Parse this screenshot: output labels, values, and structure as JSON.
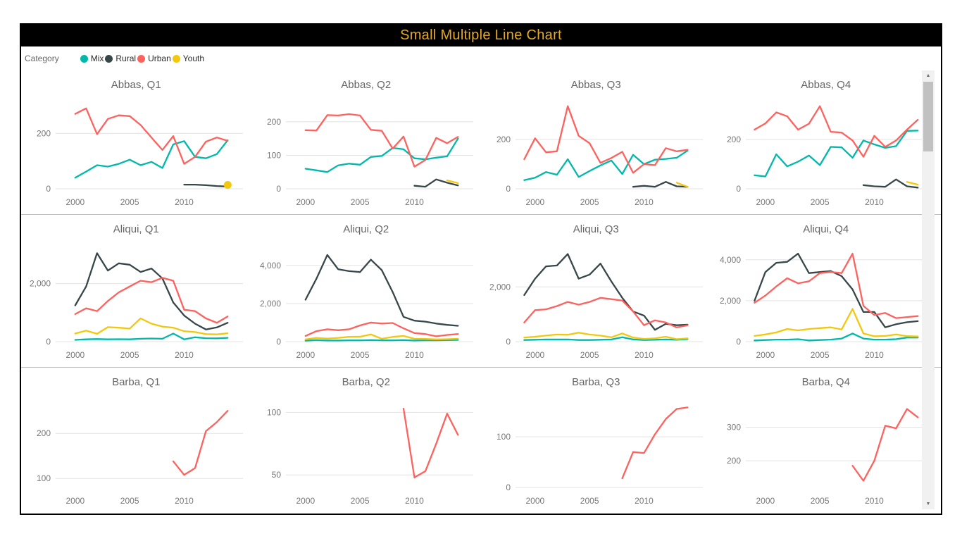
{
  "header": {
    "title": "Small Multiple Line Chart",
    "title_color": "#E6AA1E",
    "bar_color": "#000000"
  },
  "legend": {
    "label": "Category",
    "items": [
      {
        "name": "Mix",
        "color": "#01B8AA"
      },
      {
        "name": "Rural",
        "color": "#374649"
      },
      {
        "name": "Urban",
        "color": "#FD625E"
      },
      {
        "name": "Youth",
        "color": "#F2C80F"
      }
    ]
  },
  "axis_style": {
    "tick_color": "#777777",
    "gridline_color": "#e3e3e3",
    "title_color": "#666666"
  },
  "chart_data": [
    {
      "type": "line",
      "title": "Abbas, Q1",
      "xlim": [
        1998.2,
        2015.4
      ],
      "x_ticks": [
        2000,
        2005,
        2010
      ],
      "ylim": [
        0,
        320
      ],
      "y_ticks": [
        0,
        200
      ],
      "series": [
        {
          "name": "Mix",
          "start": 2000,
          "values": [
            40,
            62,
            85,
            80,
            90,
            105,
            85,
            97,
            75,
            160,
            172,
            115,
            110,
            125,
            175
          ]
        },
        {
          "name": "Rural",
          "start": 2010,
          "values": [
            15,
            15,
            13,
            10,
            8
          ]
        },
        {
          "name": "Urban",
          "start": 2000,
          "values": [
            270,
            290,
            197,
            252,
            265,
            262,
            230,
            185,
            140,
            190,
            90,
            115,
            170,
            185,
            173
          ]
        },
        {
          "name": "Youth",
          "start": 2014,
          "values": [
            14
          ]
        }
      ]
    },
    {
      "type": "line",
      "title": "Abbas, Q2",
      "xlim": [
        1998.2,
        2015.4
      ],
      "x_ticks": [
        2000,
        2005,
        2010
      ],
      "ylim": [
        0,
        265
      ],
      "y_ticks": [
        0,
        100,
        200
      ],
      "series": [
        {
          "name": "Mix",
          "start": 2000,
          "values": [
            60,
            55,
            50,
            70,
            75,
            72,
            95,
            98,
            122,
            118,
            91,
            88,
            93,
            97,
            150
          ]
        },
        {
          "name": "Rural",
          "start": 2010,
          "values": [
            9,
            6,
            28,
            18,
            10
          ]
        },
        {
          "name": "Urban",
          "start": 2000,
          "values": [
            175,
            174,
            220,
            219,
            223,
            219,
            176,
            173,
            120,
            156,
            66,
            86,
            152,
            136,
            155
          ]
        },
        {
          "name": "Youth",
          "start": 2013,
          "values": [
            25,
            17
          ]
        }
      ]
    },
    {
      "type": "line",
      "title": "Abbas, Q3",
      "xlim": [
        1998.2,
        2015.4
      ],
      "x_ticks": [
        2000,
        2005,
        2010
      ],
      "ylim": [
        0,
        360
      ],
      "y_ticks": [
        0,
        200
      ],
      "series": [
        {
          "name": "Mix",
          "start": 1999,
          "values": [
            35,
            45,
            68,
            57,
            120,
            48,
            72,
            95,
            115,
            60,
            138,
            100,
            118,
            121,
            126,
            155
          ]
        },
        {
          "name": "Rural",
          "start": 2009,
          "values": [
            8,
            12,
            8,
            28,
            10,
            8
          ]
        },
        {
          "name": "Urban",
          "start": 1999,
          "values": [
            120,
            205,
            148,
            152,
            335,
            215,
            185,
            105,
            125,
            150,
            65,
            100,
            96,
            165,
            152,
            158
          ]
        },
        {
          "name": "Youth",
          "start": 2013,
          "values": [
            25,
            8
          ]
        }
      ]
    },
    {
      "type": "line",
      "title": "Abbas, Q4",
      "xlim": [
        1998.2,
        2015.4
      ],
      "x_ticks": [
        2000,
        2005,
        2010
      ],
      "ylim": [
        0,
        360
      ],
      "y_ticks": [
        0,
        200
      ],
      "series": [
        {
          "name": "Mix",
          "start": 1999,
          "values": [
            55,
            50,
            140,
            91,
            110,
            135,
            96,
            170,
            168,
            126,
            196,
            180,
            166,
            173,
            235,
            236
          ]
        },
        {
          "name": "Rural",
          "start": 2009,
          "values": [
            15,
            10,
            8,
            38,
            10,
            5
          ]
        },
        {
          "name": "Urban",
          "start": 1999,
          "values": [
            240,
            265,
            310,
            294,
            240,
            264,
            335,
            231,
            228,
            196,
            130,
            215,
            170,
            196,
            240,
            280
          ]
        },
        {
          "name": "Youth",
          "start": 2013,
          "values": [
            28,
            17
          ]
        }
      ]
    },
    {
      "type": "line",
      "title": "Aliqui, Q1",
      "xlim": [
        1998.2,
        2015.4
      ],
      "x_ticks": [
        2000,
        2005,
        2010
      ],
      "ylim": [
        0,
        3350
      ],
      "y_ticks": [
        0,
        2000
      ],
      "series": [
        {
          "name": "Mix",
          "start": 2000,
          "values": [
            60,
            80,
            90,
            80,
            85,
            80,
            100,
            110,
            100,
            280,
            80,
            150,
            120,
            115,
            130
          ]
        },
        {
          "name": "Rural",
          "start": 2000,
          "values": [
            1250,
            1900,
            3050,
            2450,
            2700,
            2650,
            2400,
            2520,
            2180,
            1350,
            900,
            620,
            420,
            490,
            650
          ]
        },
        {
          "name": "Urban",
          "start": 2000,
          "values": [
            950,
            1150,
            1050,
            1400,
            1700,
            1900,
            2100,
            2050,
            2200,
            2100,
            1100,
            1050,
            800,
            650,
            870
          ]
        },
        {
          "name": "Youth",
          "start": 2000,
          "values": [
            280,
            380,
            270,
            500,
            480,
            450,
            800,
            620,
            520,
            480,
            360,
            330,
            260,
            250,
            290
          ]
        }
      ]
    },
    {
      "type": "line",
      "title": "Aliqui, Q2",
      "xlim": [
        1998.2,
        2015.4
      ],
      "x_ticks": [
        2000,
        2005,
        2010
      ],
      "ylim": [
        0,
        5100
      ],
      "y_ticks": [
        0,
        2000,
        4000
      ],
      "series": [
        {
          "name": "Mix",
          "start": 2000,
          "values": [
            50,
            80,
            60,
            60,
            70,
            70,
            80,
            70,
            70,
            80,
            60,
            70,
            70,
            80,
            90
          ]
        },
        {
          "name": "Rural",
          "start": 2000,
          "values": [
            2200,
            3300,
            4550,
            3800,
            3700,
            3650,
            4300,
            3750,
            2600,
            1300,
            1100,
            1050,
            950,
            880,
            830
          ]
        },
        {
          "name": "Urban",
          "start": 2000,
          "values": [
            300,
            550,
            650,
            600,
            650,
            850,
            1000,
            950,
            980,
            700,
            450,
            400,
            280,
            350,
            400
          ]
        },
        {
          "name": "Youth",
          "start": 2000,
          "values": [
            120,
            200,
            160,
            200,
            250,
            260,
            380,
            150,
            250,
            300,
            150,
            140,
            120,
            130,
            150
          ]
        }
      ]
    },
    {
      "type": "line",
      "title": "Aliqui, Q3",
      "xlim": [
        1998.2,
        2015.4
      ],
      "x_ticks": [
        2000,
        2005,
        2010
      ],
      "ylim": [
        0,
        3550
      ],
      "y_ticks": [
        0,
        2000
      ],
      "series": [
        {
          "name": "Mix",
          "start": 1999,
          "values": [
            60,
            70,
            80,
            80,
            80,
            60,
            60,
            70,
            80,
            160,
            80,
            60,
            70,
            80,
            70,
            90
          ]
        },
        {
          "name": "Rural",
          "start": 1999,
          "values": [
            1700,
            2300,
            2750,
            2780,
            3200,
            2300,
            2450,
            2850,
            2200,
            1600,
            1100,
            950,
            430,
            650,
            600,
            620
          ]
        },
        {
          "name": "Urban",
          "start": 1999,
          "values": [
            700,
            1150,
            1180,
            1300,
            1450,
            1350,
            1450,
            1600,
            1550,
            1500,
            1100,
            600,
            780,
            700,
            520,
            600
          ]
        },
        {
          "name": "Youth",
          "start": 1999,
          "values": [
            150,
            180,
            220,
            260,
            250,
            330,
            260,
            220,
            160,
            300,
            150,
            100,
            120,
            180,
            90,
            120
          ]
        }
      ]
    },
    {
      "type": "line",
      "title": "Aliqui, Q4",
      "xlim": [
        1998.2,
        2015.4
      ],
      "x_ticks": [
        2000,
        2005,
        2010
      ],
      "ylim": [
        0,
        4750
      ],
      "y_ticks": [
        0,
        2000,
        4000
      ],
      "series": [
        {
          "name": "Mix",
          "start": 1999,
          "values": [
            60,
            80,
            100,
            100,
            120,
            60,
            80,
            100,
            150,
            400,
            150,
            100,
            100,
            120,
            200,
            200
          ]
        },
        {
          "name": "Rural",
          "start": 1999,
          "values": [
            2000,
            3400,
            3850,
            3900,
            4300,
            3350,
            3400,
            3450,
            3200,
            2550,
            1450,
            1450,
            700,
            850,
            950,
            1000
          ]
        },
        {
          "name": "Urban",
          "start": 1999,
          "values": [
            1900,
            2250,
            2700,
            3100,
            2850,
            2950,
            3350,
            3400,
            3350,
            4300,
            1750,
            1300,
            1400,
            1150,
            1200,
            1250
          ]
        },
        {
          "name": "Youth",
          "start": 1999,
          "values": [
            280,
            350,
            450,
            620,
            550,
            620,
            660,
            700,
            600,
            1600,
            400,
            260,
            280,
            350,
            270,
            250
          ]
        }
      ]
    },
    {
      "type": "line",
      "title": "Barba, Q1",
      "xlim": [
        1998.2,
        2015.4
      ],
      "x_ticks": [
        2000,
        2005,
        2010
      ],
      "ylim": [
        80,
        280
      ],
      "y_ticks": [
        100,
        200
      ],
      "series": [
        {
          "name": "Urban",
          "start": 2009,
          "values": [
            138,
            108,
            123,
            205,
            225,
            250
          ]
        }
      ]
    },
    {
      "type": "line",
      "title": "Barba, Q2",
      "xlim": [
        1998.2,
        2015.4
      ],
      "x_ticks": [
        2000,
        2005,
        2010
      ],
      "ylim": [
        40,
        112
      ],
      "y_ticks": [
        50,
        100
      ],
      "series": [
        {
          "name": "Urban",
          "start": 2009,
          "values": [
            103,
            48,
            53,
            75,
            99,
            82
          ]
        }
      ]
    },
    {
      "type": "line",
      "title": "Barba, Q3",
      "xlim": [
        1998.2,
        2015.4
      ],
      "x_ticks": [
        2000,
        2005,
        2010
      ],
      "ylim": [
        0,
        178
      ],
      "y_ticks": [
        0,
        100
      ],
      "series": [
        {
          "name": "Urban",
          "start": 2008,
          "values": [
            18,
            70,
            68,
            105,
            135,
            155,
            158
          ]
        }
      ]
    },
    {
      "type": "line",
      "title": "Barba, Q4",
      "xlim": [
        1998.2,
        2015.4
      ],
      "x_ticks": [
        2000,
        2005,
        2010
      ],
      "ylim": [
        120,
        390
      ],
      "y_ticks": [
        200,
        300
      ],
      "series": [
        {
          "name": "Urban",
          "start": 2008,
          "values": [
            185,
            140,
            200,
            305,
            297,
            355,
            330
          ]
        }
      ]
    }
  ],
  "scrollbar": {
    "up_glyph": "▲",
    "down_glyph": "▼"
  }
}
